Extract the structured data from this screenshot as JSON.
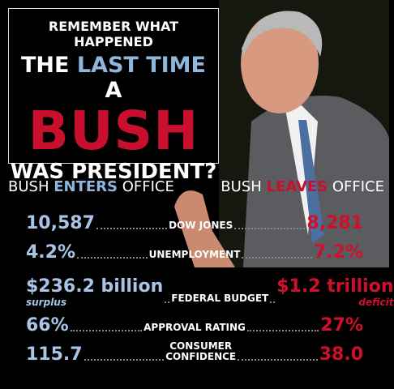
{
  "headline": {
    "line1": "REMEMBER WHAT HAPPENED",
    "line2_start": "THE",
    "line2_highlight": "LAST TIME",
    "line2_end": "A",
    "line3": "BUSH",
    "line4": "WAS PRESIDENT?"
  },
  "left_header": {
    "name": "BUSH",
    "verb": "ENTERS",
    "word": "OFFICE"
  },
  "right_header": {
    "name": "BUSH",
    "verb": "LEAVES",
    "word": "OFFICE"
  },
  "rows": [
    {
      "label": [
        "DOW JONES"
      ],
      "before": "10,587",
      "after": "8,281"
    },
    {
      "label": [
        "UNEMPLOYMENT"
      ],
      "before": "4.2%",
      "after": "7.2%"
    },
    {
      "label": [
        "FEDERAL BUDGET"
      ],
      "before": "$236.2 billion",
      "before_note": "surplus",
      "after": "$1.2 trillion",
      "after_note": "deficit"
    },
    {
      "label": [
        "APPROVAL RATING"
      ],
      "before": "66%",
      "after": "27%"
    },
    {
      "label": [
        "CONSUMER",
        "CONFIDENCE"
      ],
      "before": "115.7",
      "after": "38.0"
    }
  ]
}
